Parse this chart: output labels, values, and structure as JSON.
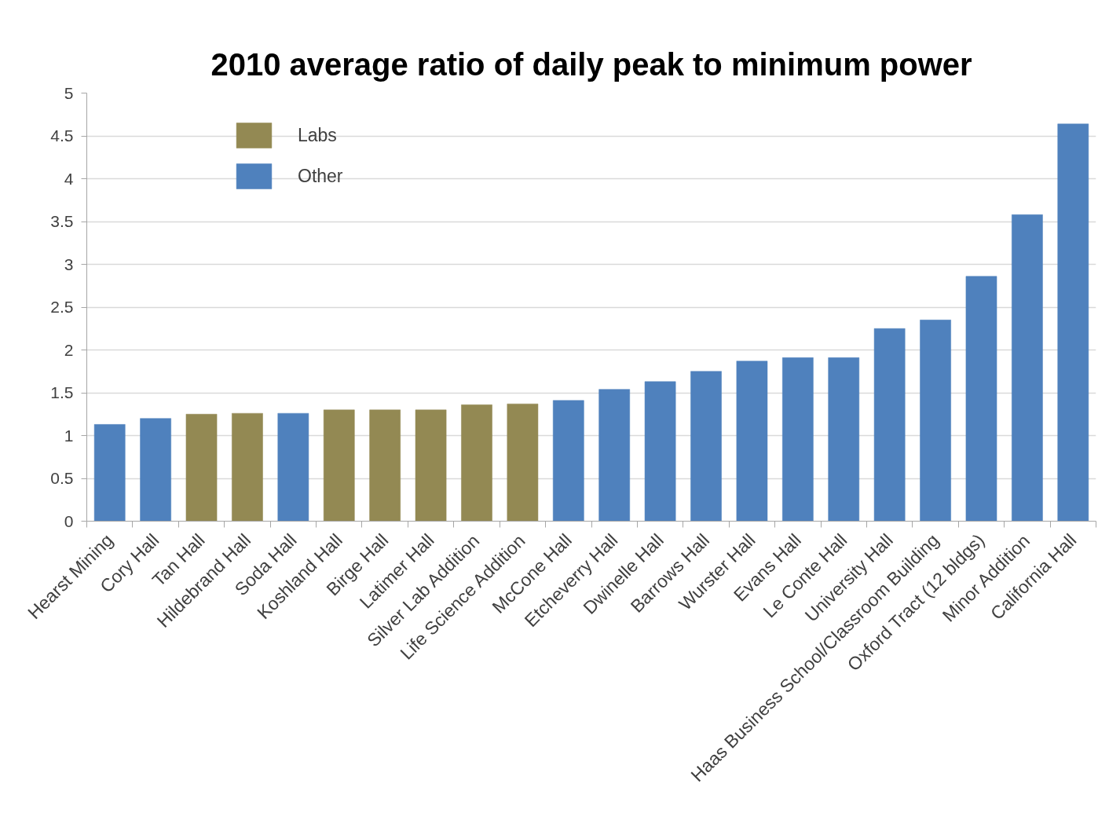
{
  "chart_data": {
    "type": "bar",
    "title": "2010 average ratio of daily peak to minimum power",
    "categories": [
      "Hearst Mining",
      "Cory Hall",
      "Tan Hall",
      "Hildebrand Hall",
      "Soda Hall",
      "Koshland Hall",
      "Birge Hall",
      "Latimer Hall",
      "Silver Lab Addition",
      "Life Science Addition",
      "McCone Hall",
      "Etcheverry Hall",
      "Dwinelle Hall",
      "Barrows Hall",
      "Wurster Hall",
      "Evans Hall",
      "Le Conte Hall",
      "University Hall",
      "Haas Business School/Classroom Building",
      "Oxford Tract (12 bldgs)",
      "Minor Addition",
      "California Hall"
    ],
    "series": [
      {
        "name": "Labs",
        "color": "#938953",
        "values": [
          null,
          null,
          1.25,
          1.26,
          null,
          1.3,
          1.3,
          1.3,
          1.36,
          1.37,
          null,
          null,
          null,
          null,
          null,
          null,
          null,
          null,
          null,
          null,
          null,
          null
        ]
      },
      {
        "name": "Other",
        "color": "#4f81bd",
        "values": [
          1.13,
          1.2,
          null,
          null,
          1.26,
          null,
          null,
          null,
          null,
          null,
          1.41,
          1.54,
          1.63,
          1.75,
          1.87,
          1.91,
          1.91,
          2.25,
          2.35,
          2.86,
          3.58,
          4.64
        ]
      }
    ],
    "stacked": true,
    "ylim": [
      0,
      5
    ],
    "yticks": [
      0,
      0.5,
      1,
      1.5,
      2,
      2.5,
      3,
      3.5,
      4,
      4.5,
      5
    ],
    "grid": "y",
    "legend": "top left"
  }
}
